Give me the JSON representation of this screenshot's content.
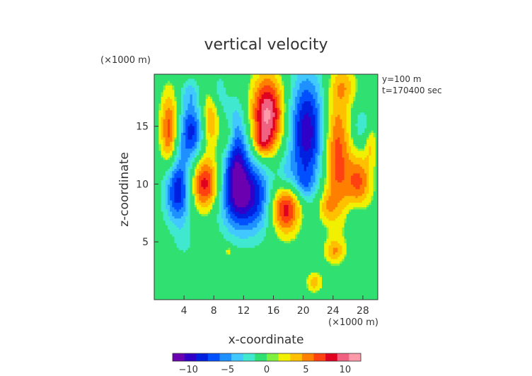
{
  "chart_data": {
    "type": "heatmap",
    "title": "vertical velocity",
    "xlabel": "x-coordinate",
    "ylabel": "z-coordinate",
    "x_unit": "(×1000 m)",
    "y_unit": "(×1000 m)",
    "annotations": [
      "y=100 m",
      "t=170400 sec"
    ],
    "xlim": [
      0,
      30
    ],
    "ylim": [
      0,
      19.5
    ],
    "x_ticks": [
      "4",
      "8",
      "12",
      "16",
      "20",
      "24",
      "28"
    ],
    "y_ticks": [
      "5",
      "10",
      "15"
    ],
    "colorbar": {
      "range": [
        -12,
        12
      ],
      "tick_labels": [
        "−10",
        "−5",
        "0",
        "5",
        "10"
      ],
      "colors": [
        "#6a00b0",
        "#3000c8",
        "#0020e0",
        "#0050ff",
        "#1e90ff",
        "#40c8ff",
        "#40e8d0",
        "#30e070",
        "#80f040",
        "#f0f000",
        "#ffc000",
        "#ff8000",
        "#ff4010",
        "#e00020",
        "#f06080",
        "#ff9aaa"
      ]
    },
    "blobs": [
      {
        "x": 3.2,
        "z": 9.5,
        "w": 1.3,
        "h": 2.1,
        "v": -9
      },
      {
        "x": 5.0,
        "z": 14.6,
        "w": 1.2,
        "h": 1.8,
        "v": -8
      },
      {
        "x": 4.8,
        "z": 18.0,
        "w": 0.8,
        "h": 0.8,
        "v": -3
      },
      {
        "x": 11.0,
        "z": 12.5,
        "w": 1.1,
        "h": 3.0,
        "v": -7
      },
      {
        "x": 12.5,
        "z": 9.0,
        "w": 2.6,
        "h": 2.3,
        "v": -10
      },
      {
        "x": 9.0,
        "z": 18.0,
        "w": 1.0,
        "h": 1.3,
        "v": -3
      },
      {
        "x": 20.5,
        "z": 14.5,
        "w": 1.7,
        "h": 3.6,
        "v": -10
      },
      {
        "x": 20.0,
        "z": 10.0,
        "w": 0.9,
        "h": 0.9,
        "v": -3
      },
      {
        "x": 17.8,
        "z": 10.5,
        "w": 0.9,
        "h": 1.3,
        "v": -3
      },
      {
        "x": 27.8,
        "z": 15.0,
        "w": 0.9,
        "h": 1.2,
        "v": -3
      },
      {
        "x": 4.0,
        "z": 5.0,
        "w": 0.8,
        "h": 0.8,
        "v": -2
      },
      {
        "x": 27.0,
        "z": 7.0,
        "w": 0.9,
        "h": 0.8,
        "v": -2
      },
      {
        "x": 2.0,
        "z": 14.6,
        "w": 0.8,
        "h": 2.3,
        "v": 7
      },
      {
        "x": 6.8,
        "z": 10.0,
        "w": 1.4,
        "h": 1.6,
        "v": 9
      },
      {
        "x": 7.5,
        "z": 15.5,
        "w": 0.9,
        "h": 1.8,
        "v": 5
      },
      {
        "x": 15.2,
        "z": 16.0,
        "w": 1.5,
        "h": 2.3,
        "v": 11
      },
      {
        "x": 14.5,
        "z": 13.6,
        "w": 0.8,
        "h": 0.8,
        "v": 4
      },
      {
        "x": 17.6,
        "z": 8.0,
        "w": 1.5,
        "h": 1.6,
        "v": 10
      },
      {
        "x": 24.5,
        "z": 12.5,
        "w": 1.3,
        "h": 4.0,
        "v": 7
      },
      {
        "x": 27.5,
        "z": 10.2,
        "w": 1.2,
        "h": 1.6,
        "v": 6
      },
      {
        "x": 29.0,
        "z": 13.5,
        "w": 0.6,
        "h": 1.2,
        "v": 3
      },
      {
        "x": 10.0,
        "z": 14.0,
        "w": 0.7,
        "h": 1.1,
        "v": 3
      },
      {
        "x": 23.0,
        "z": 8.0,
        "w": 0.9,
        "h": 0.9,
        "v": 3
      },
      {
        "x": 24.2,
        "z": 4.2,
        "w": 0.9,
        "h": 0.7,
        "v": 4
      },
      {
        "x": 21.5,
        "z": 1.5,
        "w": 0.7,
        "h": 0.6,
        "v": 4
      },
      {
        "x": 10.0,
        "z": 4.2,
        "w": 0.4,
        "h": 0.3,
        "v": 3
      },
      {
        "x": 25.5,
        "z": 18.5,
        "w": 1.2,
        "h": 1.1,
        "v": 3
      },
      {
        "x": 10.0,
        "z": 18.5,
        "w": 0.7,
        "h": 0.9,
        "v": 2
      }
    ]
  }
}
